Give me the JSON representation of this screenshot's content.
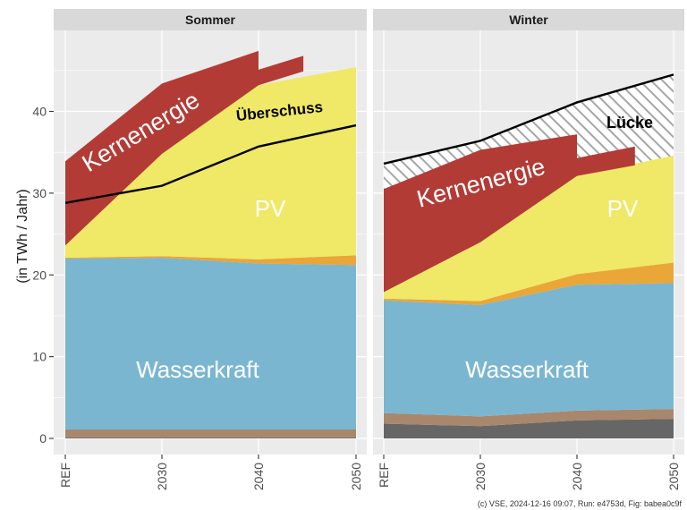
{
  "chart_data": {
    "type": "area",
    "ylabel": "(in TWh / Jahr)",
    "x": [
      "REF",
      "2030",
      "2040",
      "2050"
    ],
    "yticks": [
      0,
      10,
      20,
      30,
      40
    ],
    "ylim": [
      -1,
      48
    ],
    "grid": true,
    "caption": "(c) VSE, 2024-12-16 09:07, Run: e4753d, Fig: babea0c9f",
    "colors": {
      "panel_bg": "#ebebeb",
      "grid": "#ffffff",
      "strip": "#d9d9d9",
      "dark_grey": "#666666",
      "brown": "#a8876d",
      "wasserkraft": "#7bb6d1",
      "orange": "#eaa637",
      "pv": "#f0e867",
      "kernenergie": "#b33b36",
      "line": "#000000"
    },
    "panels": [
      {
        "title": "Sommer",
        "stacks": {
          "dark_grey": [
            0.1,
            0.1,
            0.1,
            0.1
          ],
          "brown": [
            1.1,
            1.1,
            1.1,
            1.1
          ],
          "wasserkraft": [
            22.0,
            22.1,
            21.4,
            21.2
          ],
          "orange": [
            22.1,
            22.3,
            21.9,
            22.4
          ],
          "pv": [
            23.6,
            34.8,
            43.2,
            45.4
          ]
        },
        "kernenergie_band": {
          "x": [
            0,
            1,
            2.0
          ],
          "lower": [
            23.6,
            34.8,
            43.2
          ],
          "upper": [
            33.9,
            43.4,
            47.4
          ]
        },
        "kernenergie_stub": {
          "x": [
            2.0,
            2.46
          ],
          "lower": [
            43.2,
            44.9
          ],
          "upper": [
            45.1,
            46.8
          ]
        },
        "line_name": "Überschuss",
        "line": [
          28.8,
          30.9,
          35.7,
          38.3
        ],
        "labels": {
          "wasserkraft": "Wasserkraft",
          "pv": "PV",
          "kernenergie": "Kernenergie",
          "line": "Überschuss"
        }
      },
      {
        "title": "Winter",
        "stacks": {
          "dark_grey": [
            1.8,
            1.5,
            2.2,
            2.4
          ],
          "brown": [
            3.1,
            2.7,
            3.4,
            3.6
          ],
          "wasserkraft": [
            16.9,
            16.3,
            18.8,
            19.0
          ],
          "orange": [
            17.1,
            16.8,
            20.1,
            21.5
          ],
          "pv": [
            17.9,
            24.0,
            32.1,
            34.6
          ]
        },
        "kernenergie_band": {
          "x": [
            0,
            1,
            2.0
          ],
          "lower": [
            17.9,
            24.0,
            32.1
          ],
          "upper": [
            30.5,
            35.3,
            37.2
          ]
        },
        "kernenergie_stub": {
          "x": [
            2.0,
            2.6
          ],
          "lower": [
            32.1,
            33.4
          ],
          "upper": [
            34.3,
            35.7
          ]
        },
        "line_name": "Lücke",
        "line": [
          33.6,
          36.4,
          41.1,
          44.5
        ],
        "labels": {
          "wasserkraft": "Wasserkraft",
          "pv": "PV",
          "kernenergie": "Kernenergie",
          "line": "Lücke"
        }
      }
    ]
  }
}
